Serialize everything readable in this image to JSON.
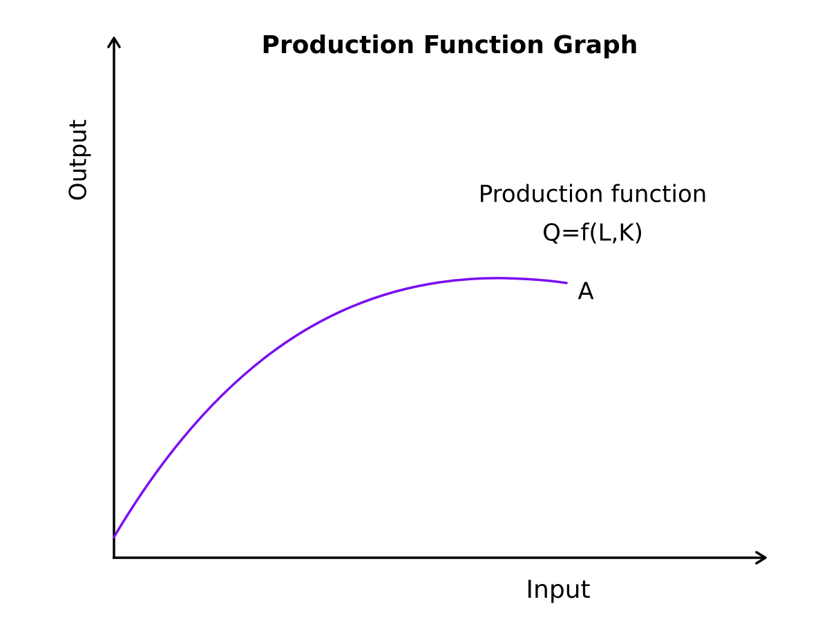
{
  "title": "Production Function Graph",
  "axes": {
    "y_label": "Output",
    "x_label": "Input"
  },
  "curve_label": {
    "lines": [
      "Production function",
      "Q=f(L,K)"
    ]
  },
  "point_label": "A"
}
